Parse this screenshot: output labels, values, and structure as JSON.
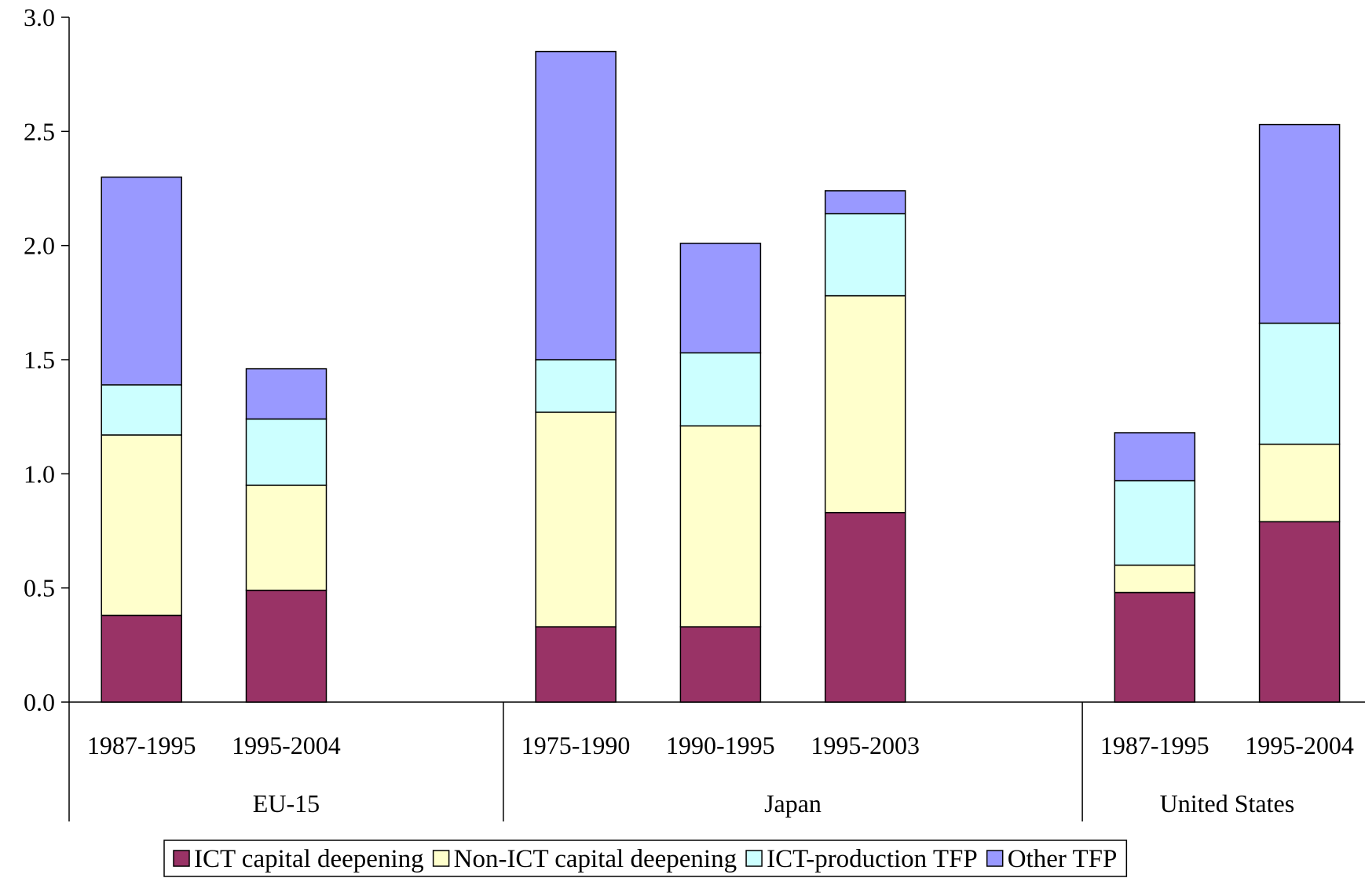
{
  "chart_data": {
    "type": "bar",
    "stacked": true,
    "title": "",
    "xlabel": "",
    "ylabel": "",
    "ylim": [
      0,
      3.0
    ],
    "y_ticks": [
      "0.0",
      "0.5",
      "1.0",
      "1.5",
      "2.0",
      "2.5",
      "3.0"
    ],
    "grid": false,
    "legend_position": "bottom",
    "groups": [
      {
        "label": "EU-15",
        "categories": [
          "1987-1995",
          "1995-2004"
        ]
      },
      {
        "label": "Japan",
        "categories": [
          "1975-1990",
          "1990-1995",
          "1995-2003"
        ]
      },
      {
        "label": "United States",
        "categories": [
          "1987-1995",
          "1995-2004"
        ]
      }
    ],
    "series": [
      {
        "name": "ICT capital deepening",
        "color": "#993366",
        "values": [
          0.38,
          0.49,
          0.33,
          0.33,
          0.83,
          0.48,
          0.79
        ]
      },
      {
        "name": "Non-ICT capital deepening",
        "color": "#ffffcc",
        "values": [
          0.79,
          0.46,
          0.94,
          0.88,
          0.95,
          0.12,
          0.34
        ]
      },
      {
        "name": "ICT-production TFP",
        "color": "#ccffff",
        "values": [
          0.22,
          0.29,
          0.23,
          0.32,
          0.36,
          0.37,
          0.53
        ]
      },
      {
        "name": "Other TFP",
        "color": "#9999ff",
        "values": [
          0.91,
          0.22,
          1.35,
          0.48,
          0.1,
          0.21,
          0.87
        ]
      }
    ]
  }
}
